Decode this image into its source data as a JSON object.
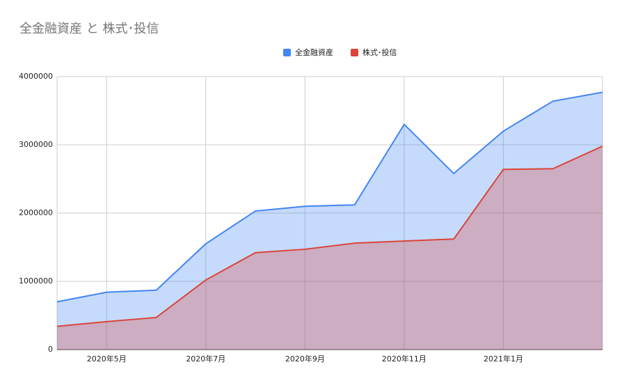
{
  "chart_data": {
    "type": "area",
    "title": "全金融資産 と 株式･投信",
    "categories": [
      null,
      "2020年5月",
      null,
      "2020年7月",
      null,
      "2020年9月",
      null,
      "2020年11月",
      null,
      "2021年1月",
      null,
      null
    ],
    "series": [
      {
        "name": "全金融資産",
        "color": "#4285f4",
        "values": [
          700000,
          840000,
          870000,
          1550000,
          2030000,
          2100000,
          2120000,
          3300000,
          2580000,
          3200000,
          3640000,
          3770000
        ]
      },
      {
        "name": "株式･投信",
        "color": "#db4437",
        "values": [
          340000,
          410000,
          470000,
          1020000,
          1420000,
          1470000,
          1560000,
          1590000,
          1620000,
          2640000,
          2650000,
          2980000
        ]
      }
    ],
    "ylim": [
      0,
      4000000
    ],
    "yticks": [
      0,
      1000000,
      2000000,
      3000000,
      4000000
    ],
    "grid": true,
    "legend": "top"
  }
}
